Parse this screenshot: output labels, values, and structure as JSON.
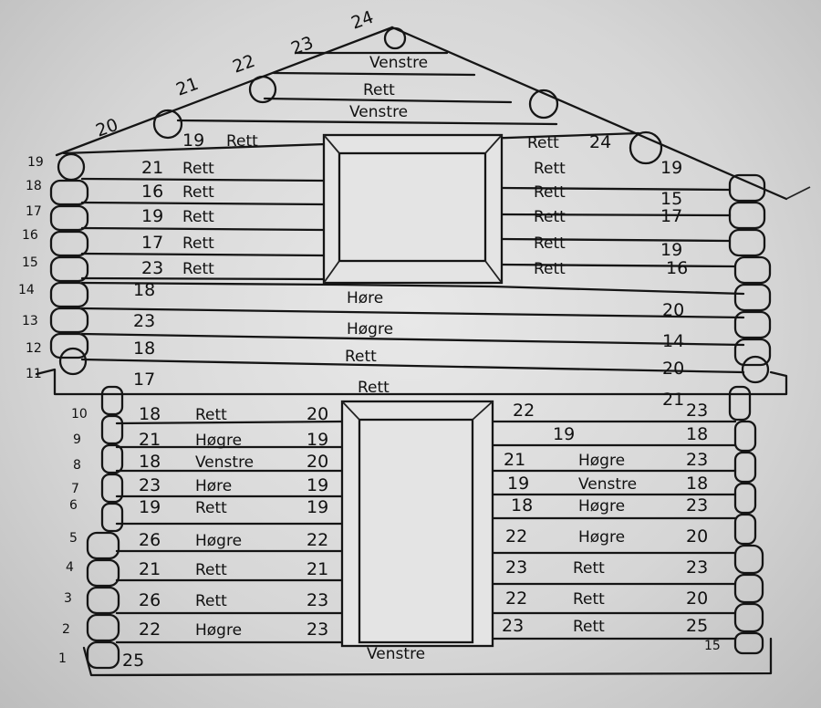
{
  "gable_ridge_numbers": [
    "20",
    "21",
    "22",
    "23",
    "24"
  ],
  "gable_logs": [
    {
      "label": "Venstre"
    },
    {
      "label": "Rett"
    },
    {
      "label": "Venstre"
    }
  ],
  "upper_row19": {
    "left_num": "19",
    "left_dir": "Rett",
    "right_dir": "Rett",
    "right_num": "24"
  },
  "upper_row_numbers": [
    "19",
    "18",
    "17",
    "16",
    "15",
    "14",
    "13",
    "12",
    "11"
  ],
  "upper_window_rows": [
    {
      "left_num": "21",
      "left_dir": "Rett",
      "right_dir": "Rett",
      "right_num": "19"
    },
    {
      "left_num": "16",
      "left_dir": "Rett",
      "right_dir": "Rett",
      "right_num": "15"
    },
    {
      "left_num": "19",
      "left_dir": "Rett",
      "right_dir": "Rett",
      "right_num": "17"
    },
    {
      "left_num": "17",
      "left_dir": "Rett",
      "right_dir": "Rett",
      "right_num": "19"
    },
    {
      "left_num": "23",
      "left_dir": "Rett",
      "right_dir": "Rett",
      "right_num": "16"
    }
  ],
  "upper_full_rows": [
    {
      "left_num": "18",
      "dir": "Høre",
      "right_num": "20"
    },
    {
      "left_num": "23",
      "dir": "Høgre",
      "right_num": "14"
    },
    {
      "left_num": "18",
      "dir": "Rett",
      "right_num": "20"
    },
    {
      "left_num": "17",
      "dir": "Rett",
      "right_num": "21"
    }
  ],
  "lower_row_numbers": [
    "10",
    "9",
    "8",
    "7",
    "6",
    "5",
    "4",
    "3",
    "2",
    "1"
  ],
  "lower_left_rows": [
    {
      "a": "18",
      "dir": "Rett",
      "b": "20"
    },
    {
      "a": "21",
      "dir": "Høgre",
      "b": "19"
    },
    {
      "a": "18",
      "dir": "Venstre",
      "b": "20"
    },
    {
      "a": "23",
      "dir": "Høre",
      "b": "19"
    },
    {
      "a": "19",
      "dir": "Rett",
      "b": "19"
    },
    {
      "a": "26",
      "dir": "Høgre",
      "b": "22"
    },
    {
      "a": "21",
      "dir": "Rett",
      "b": "21"
    },
    {
      "a": "26",
      "dir": "Rett",
      "b": "23"
    },
    {
      "a": "22",
      "dir": "Høgre",
      "b": "23"
    }
  ],
  "lower_right_rows": [
    {
      "a": "22",
      "dir": "",
      "b": "23"
    },
    {
      "a": "19",
      "dir": "",
      "b": "18"
    },
    {
      "a": "21",
      "dir": "Høgre",
      "b": "23"
    },
    {
      "a": "19",
      "dir": "Venstre",
      "b": "18"
    },
    {
      "a": "18",
      "dir": "Høgre",
      "b": "23"
    },
    {
      "a": "22",
      "dir": "Høgre",
      "b": "20"
    },
    {
      "a": "23",
      "dir": "Rett",
      "b": "23"
    },
    {
      "a": "22",
      "dir": "Rett",
      "b": "20"
    },
    {
      "a": "23",
      "dir": "Rett",
      "b": "25"
    }
  ],
  "bottom_log": {
    "left_num": "25",
    "dir": "Venstre",
    "right_num": "15"
  }
}
